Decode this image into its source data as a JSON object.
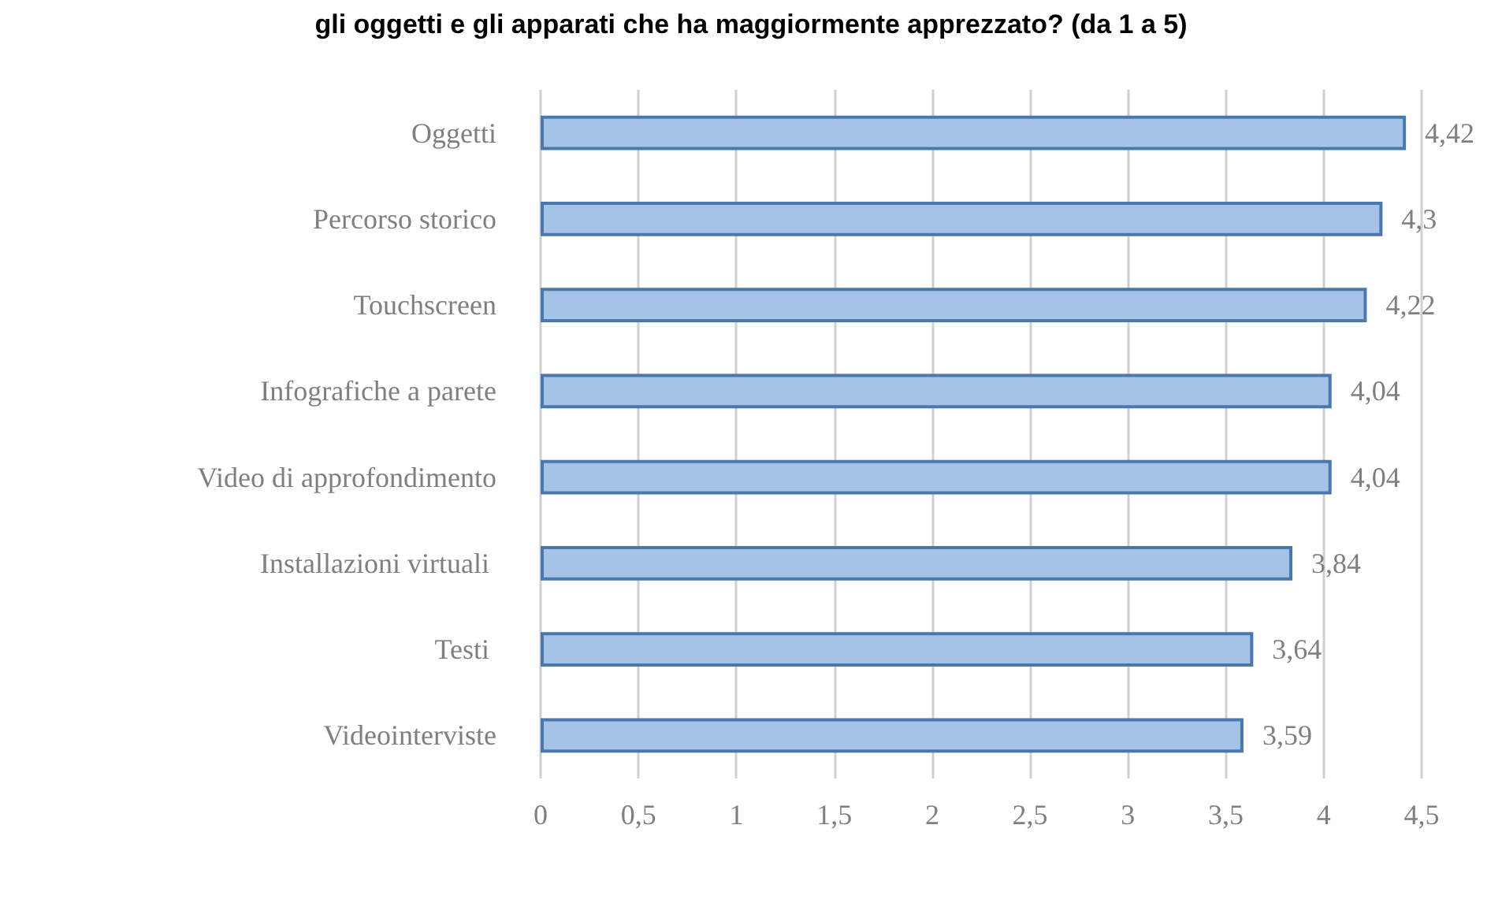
{
  "chart_data": {
    "type": "bar",
    "orientation": "horizontal",
    "title": "gli oggetti e gli apparati che ha maggiormente apprezzato? (da 1 a 5)",
    "categories": [
      "Oggetti",
      "Percorso storico",
      "Touchscreen",
      "Infografiche a parete",
      "Video di approfondimento",
      "Installazioni virtuali ",
      "Testi ",
      "Videointerviste"
    ],
    "values": [
      4.42,
      4.3,
      4.22,
      4.04,
      4.04,
      3.84,
      3.64,
      3.59
    ],
    "value_labels": [
      "4,42",
      "4,3",
      "4,22",
      "4,04",
      "4,04",
      "3,84",
      "3,64",
      "3,59"
    ],
    "color": "#a5c3e7",
    "xlim": [
      0,
      4.5
    ],
    "xticks": [
      0,
      {
        "value": 0.5,
        "label": "0,5"
      },
      1,
      {
        "value": 1.5,
        "label": "1,5"
      },
      2,
      {
        "value": 2.5,
        "label": "2,5"
      },
      3,
      {
        "value": 3.5,
        "label": "3,5"
      },
      4,
      {
        "value": 4.5,
        "label": "4,5"
      }
    ],
    "grid": "x"
  }
}
